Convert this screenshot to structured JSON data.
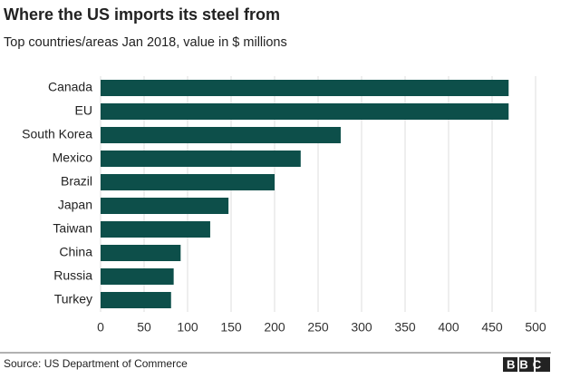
{
  "chart_data": {
    "type": "bar",
    "orientation": "horizontal",
    "title": "Where the US imports its steel from",
    "subtitle": "Top countries/areas Jan 2018, value in $ millions",
    "categories": [
      "Canada",
      "EU",
      "South Korea",
      "Mexico",
      "Brazil",
      "Japan",
      "Taiwan",
      "China",
      "Russia",
      "Turkey"
    ],
    "values": [
      469,
      469,
      276,
      230,
      200,
      147,
      126,
      92,
      84,
      81
    ],
    "color": "#0d4f4a",
    "xlim": [
      0,
      500
    ],
    "xticks": [
      0,
      50,
      100,
      150,
      200,
      250,
      300,
      350,
      400,
      450,
      500
    ],
    "grid": true,
    "source": "Source: US Department of Commerce",
    "logo": "BBC"
  }
}
